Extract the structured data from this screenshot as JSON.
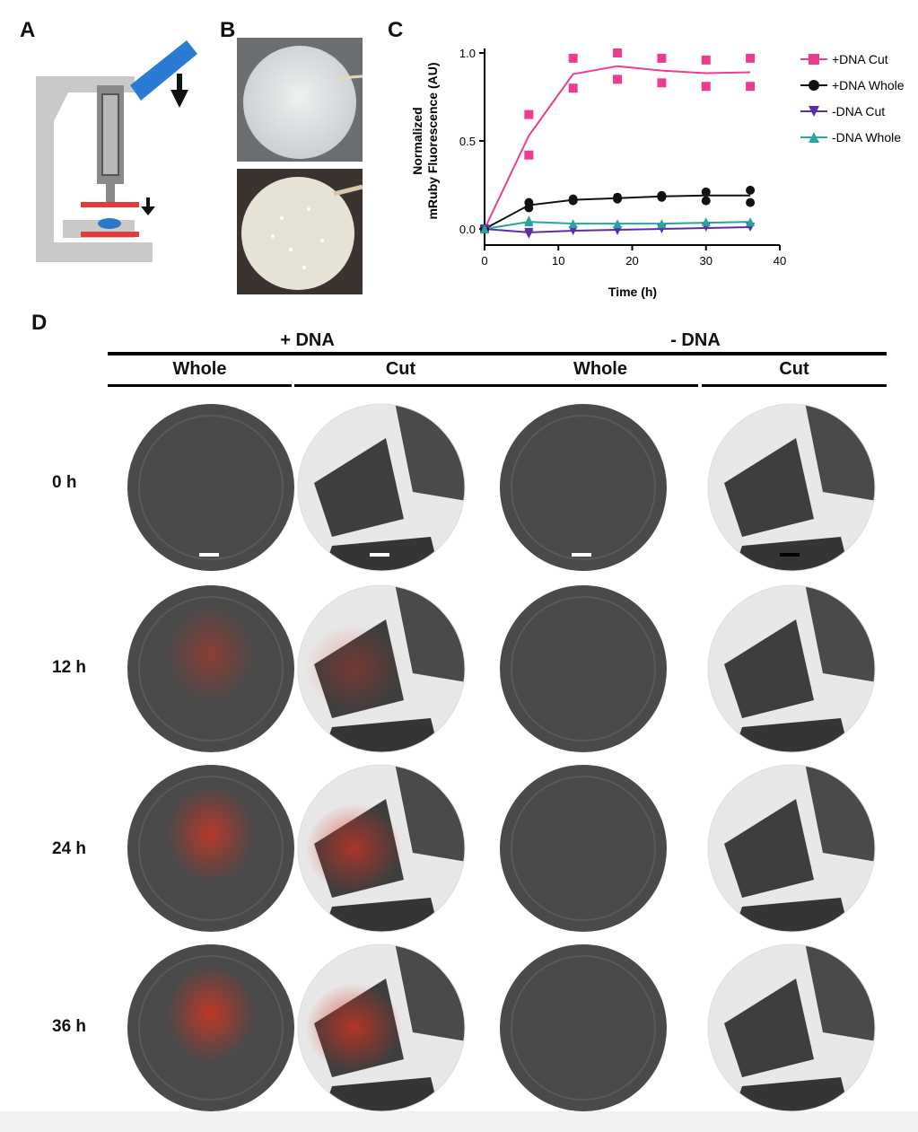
{
  "panels": {
    "A": "A",
    "B": "B",
    "C": "C",
    "D": "D"
  },
  "panel_d": {
    "groups": [
      "+ DNA",
      "- DNA"
    ],
    "subgroups": [
      "Whole",
      "Cut",
      "Whole",
      "Cut"
    ],
    "times": [
      "0 h",
      "12 h",
      "24 h",
      "36 h"
    ],
    "red_intensity": {
      "plus_whole": [
        0.0,
        0.45,
        0.75,
        0.8
      ],
      "plus_cut": [
        0.0,
        0.35,
        0.7,
        0.75
      ]
    }
  },
  "chart_data": {
    "type": "scatter",
    "ylabel": "Normalized mRuby Fluorescence (AU)",
    "xlabel": "Time (h)",
    "xlim": [
      0,
      40
    ],
    "ylim": [
      0,
      1.0
    ],
    "xticks": [
      "0",
      "10",
      "20",
      "30",
      "40"
    ],
    "yticks": [
      "0.0",
      "0.5",
      "1.0"
    ],
    "legend_position": "right",
    "series": [
      {
        "name": "+DNA Cut",
        "color": "#ee3b8f",
        "marker": "square",
        "x": [
          0,
          6,
          6,
          12,
          12,
          18,
          18,
          24,
          24,
          30,
          30,
          36,
          36
        ],
        "y": [
          0,
          0.65,
          0.42,
          0.97,
          0.8,
          1.0,
          0.85,
          0.97,
          0.83,
          0.96,
          0.81,
          0.97,
          0.81
        ],
        "fit_x": [
          0,
          6,
          12,
          18,
          24,
          30,
          36
        ],
        "fit_y": [
          0,
          0.53,
          0.88,
          0.925,
          0.9,
          0.885,
          0.89
        ]
      },
      {
        "name": "+DNA Whole",
        "color": "#111111",
        "marker": "circle",
        "x": [
          0,
          6,
          6,
          12,
          12,
          18,
          18,
          24,
          24,
          30,
          30,
          36,
          36
        ],
        "y": [
          0,
          0.15,
          0.12,
          0.17,
          0.16,
          0.18,
          0.17,
          0.19,
          0.18,
          0.21,
          0.16,
          0.22,
          0.15
        ],
        "fit_x": [
          0,
          6,
          12,
          18,
          24,
          30,
          36
        ],
        "fit_y": [
          0,
          0.135,
          0.165,
          0.175,
          0.185,
          0.19,
          0.19
        ]
      },
      {
        "name": "-DNA Cut",
        "color": "#5b2ea6",
        "marker": "triangle-down",
        "x": [
          0,
          6,
          6,
          12,
          18,
          24,
          30,
          36
        ],
        "y": [
          0,
          -0.02,
          -0.03,
          -0.01,
          -0.01,
          0.0,
          0.01,
          0.01
        ],
        "fit_x": [
          0,
          6,
          12,
          18,
          24,
          30,
          36
        ],
        "fit_y": [
          0,
          -0.02,
          -0.01,
          -0.005,
          0.0,
          0.005,
          0.01
        ]
      },
      {
        "name": "-DNA Whole",
        "color": "#2aa3a3",
        "marker": "triangle-up",
        "x": [
          0,
          6,
          6,
          12,
          18,
          24,
          30,
          36
        ],
        "y": [
          0,
          0.05,
          0.04,
          0.03,
          0.03,
          0.03,
          0.04,
          0.04
        ],
        "fit_x": [
          0,
          6,
          12,
          18,
          24,
          30,
          36
        ],
        "fit_y": [
          0,
          0.04,
          0.03,
          0.03,
          0.03,
          0.035,
          0.04
        ]
      }
    ]
  }
}
